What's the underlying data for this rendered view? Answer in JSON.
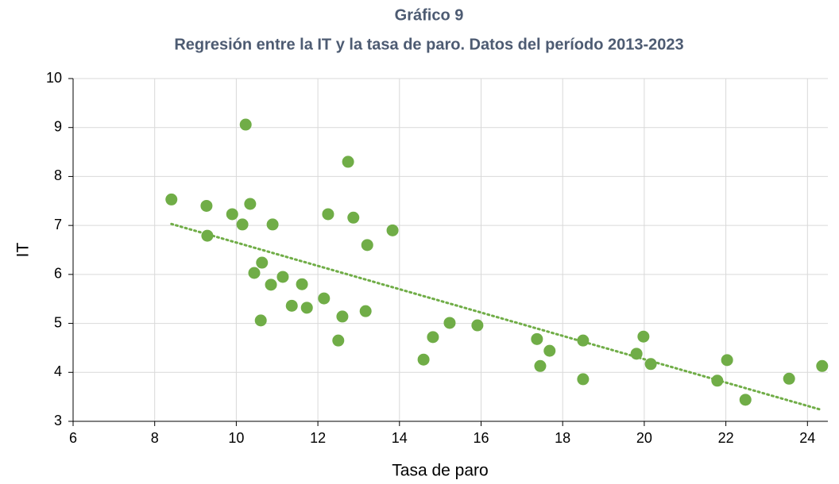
{
  "chart_data": {
    "type": "scatter",
    "title": "Gráfico 9",
    "subtitle": "Regresión entre la IT y la tasa de paro. Datos del período 2013-2023",
    "x_label": "Tasa de paro",
    "y_label": "IT",
    "color": "#70ad47",
    "x": [
      8.41,
      9.27,
      9.29,
      9.9,
      10.15,
      10.23,
      10.34,
      10.44,
      10.63,
      10.6,
      10.85,
      10.89,
      11.14,
      11.36,
      11.61,
      11.73,
      12.15,
      12.25,
      12.5,
      12.6,
      12.74,
      12.87,
      13.17,
      13.21,
      13.83,
      14.59,
      14.82,
      15.23,
      15.91,
      17.37,
      17.45,
      17.68,
      18.5,
      18.5,
      19.81,
      19.98,
      20.16,
      21.79,
      22.03,
      22.48,
      23.55,
      24.36
    ],
    "y": [
      7.53,
      7.4,
      6.79,
      7.23,
      7.02,
      9.06,
      7.44,
      6.03,
      6.24,
      5.06,
      5.79,
      7.02,
      5.95,
      5.36,
      5.8,
      5.32,
      5.51,
      7.23,
      4.65,
      5.14,
      8.3,
      7.16,
      5.25,
      6.6,
      6.9,
      4.26,
      4.72,
      5.01,
      4.96,
      4.68,
      4.13,
      4.44,
      4.65,
      3.86,
      4.38,
      4.73,
      4.17,
      3.83,
      4.25,
      3.44,
      3.87,
      4.13
    ],
    "trendline": {
      "x": [
        8.41,
        24.36
      ],
      "y": [
        7.03,
        3.23
      ]
    },
    "xlim": [
      6,
      24.5
    ],
    "xticks": [
      6,
      8,
      10,
      12,
      14,
      16,
      18,
      20,
      22,
      24
    ],
    "ylim": [
      3,
      10
    ],
    "yticks": [
      3,
      4,
      5,
      6,
      7,
      8,
      9,
      10
    ],
    "grid": true
  }
}
